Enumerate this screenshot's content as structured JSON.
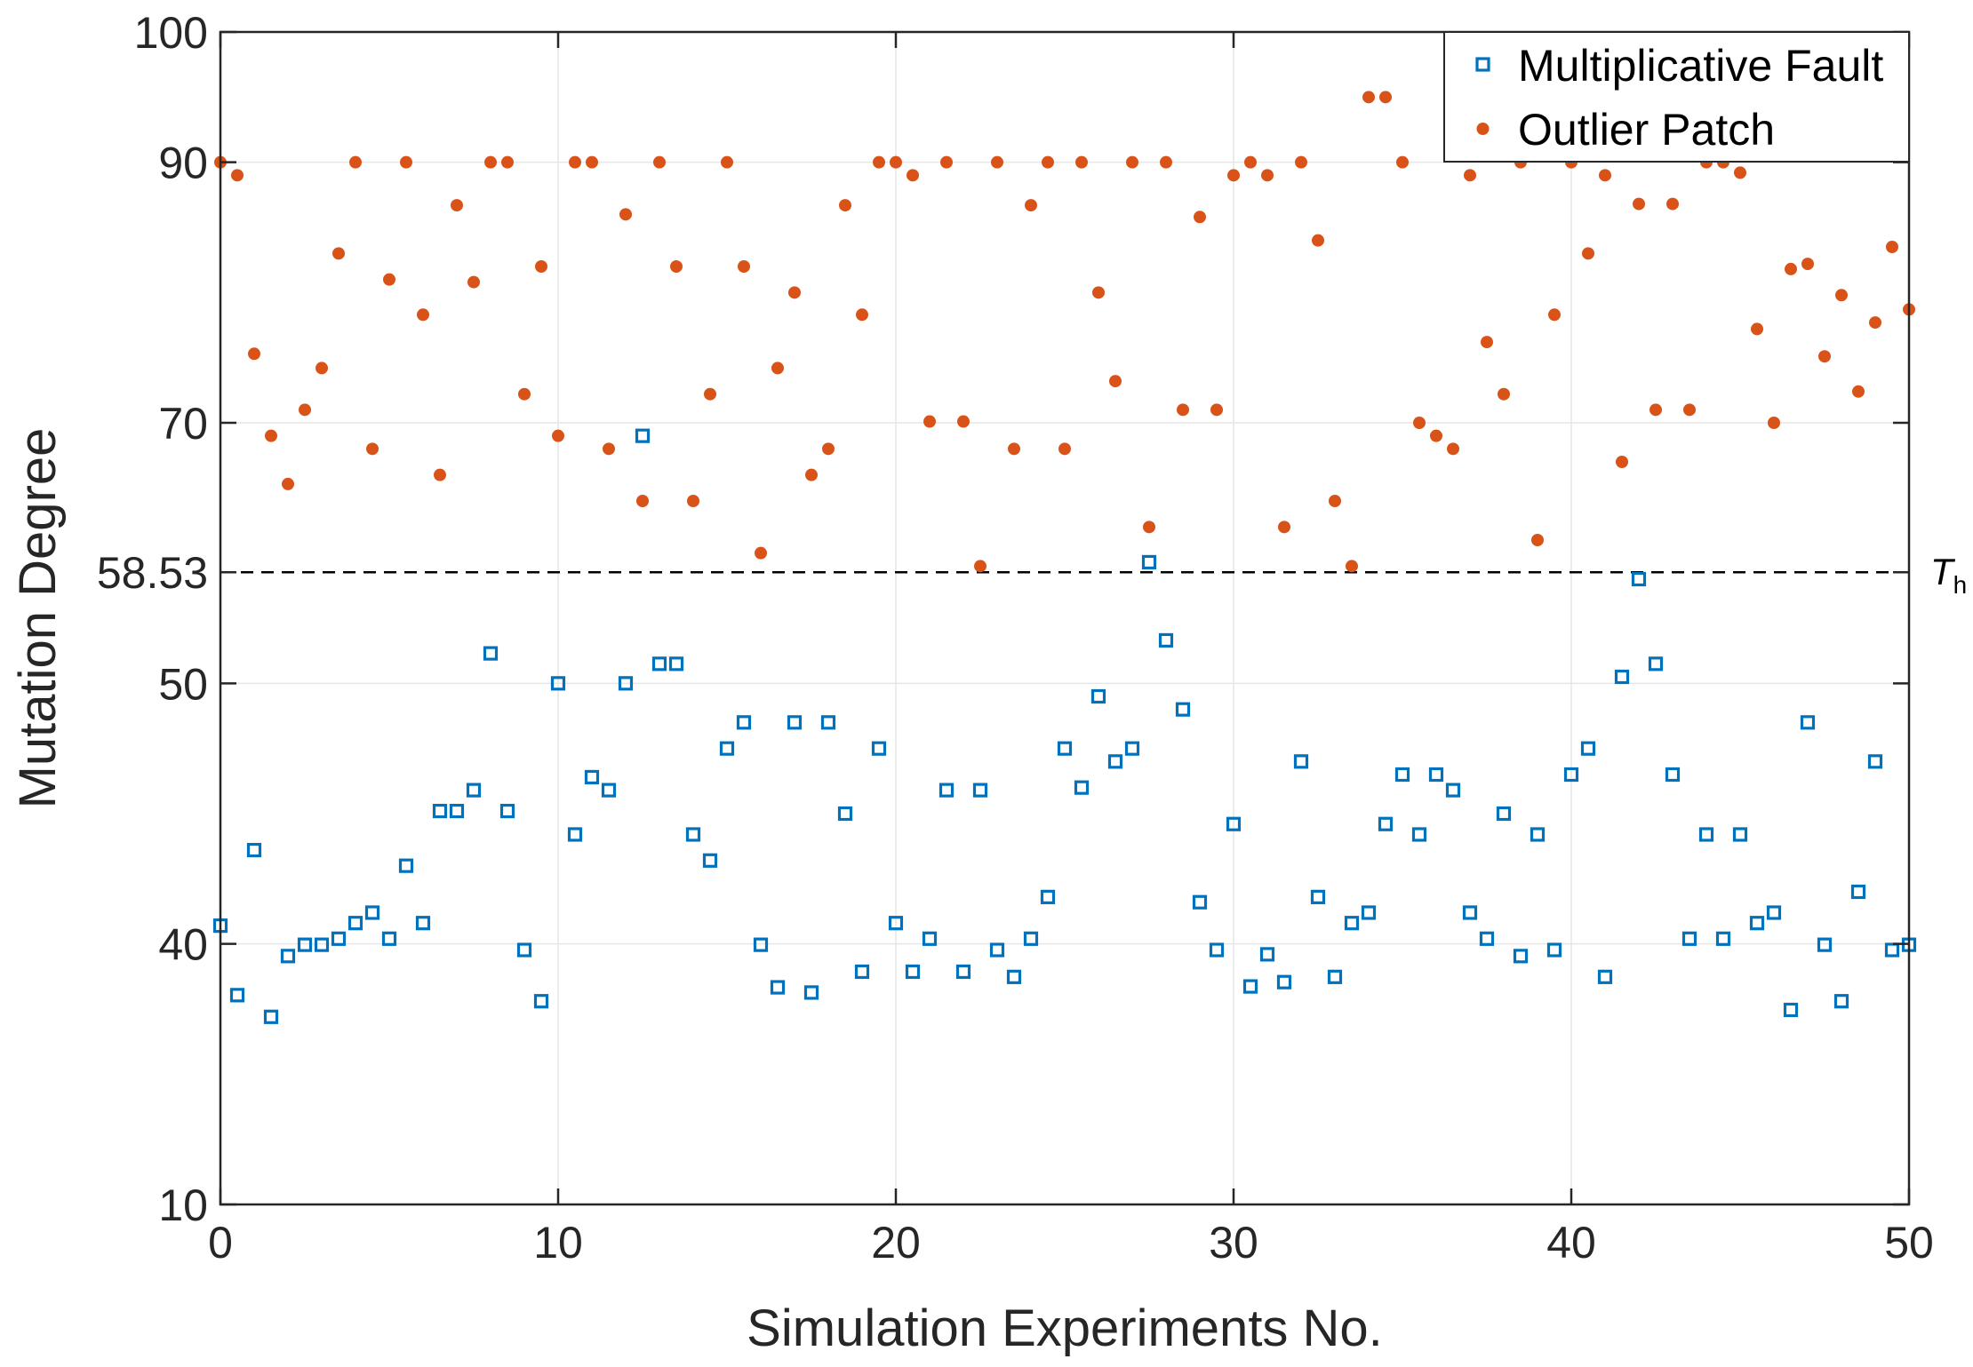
{
  "chart_data": {
    "type": "scatter",
    "title": "",
    "xlabel": "Simulation Experiments No.",
    "ylabel": "Mutation Degree",
    "xlim": [
      0,
      50
    ],
    "ylim": [
      10,
      100
    ],
    "x_ticks": [
      0,
      10,
      20,
      30,
      40,
      50
    ],
    "x_tick_labels": [
      "0",
      "10",
      "20",
      "30",
      "40",
      "50"
    ],
    "y_ticks": [
      10,
      40,
      50,
      58.53,
      70,
      90,
      100
    ],
    "y_tick_labels": [
      "10",
      "40",
      "50",
      "58.53",
      "70",
      "90",
      "100"
    ],
    "y_axis_scale": {
      "comment": "piecewise-linear axis; equal screen spacing per segment",
      "breaks": [
        10,
        40,
        50,
        70,
        90,
        100
      ],
      "relative_spans": [
        1,
        1,
        1,
        1,
        0.5
      ]
    },
    "threshold": {
      "value": 58.53,
      "label": "T",
      "label_sub": "h",
      "style": "dashed"
    },
    "grid": true,
    "legend_position": "top-right",
    "series": [
      {
        "name": "Multiplicative Fault",
        "marker": "square-open",
        "color": "#0072BD",
        "points": [
          [
            0,
            40.7
          ],
          [
            0.5,
            34.1
          ],
          [
            1,
            43.6
          ],
          [
            1.5,
            31.6
          ],
          [
            2,
            38.6
          ],
          [
            2.5,
            39.9
          ],
          [
            3,
            39.9
          ],
          [
            3.5,
            40.2
          ],
          [
            4,
            40.8
          ],
          [
            4.5,
            41.2
          ],
          [
            5,
            40.2
          ],
          [
            5.5,
            43.0
          ],
          [
            6,
            40.8
          ],
          [
            6.5,
            45.1
          ],
          [
            7,
            45.1
          ],
          [
            7.5,
            45.9
          ],
          [
            8,
            52.3
          ],
          [
            8.5,
            45.1
          ],
          [
            9,
            39.3
          ],
          [
            9.5,
            33.4
          ],
          [
            10,
            50
          ],
          [
            10.5,
            44.2
          ],
          [
            11,
            46.4
          ],
          [
            11.5,
            45.9
          ],
          [
            12,
            50
          ],
          [
            12.5,
            69
          ],
          [
            13,
            51.5
          ],
          [
            13.5,
            51.5
          ],
          [
            14,
            44.2
          ],
          [
            14.5,
            43.2
          ],
          [
            15,
            47.5
          ],
          [
            15.5,
            48.5
          ],
          [
            16,
            39.9
          ],
          [
            16.5,
            35.0
          ],
          [
            17,
            48.5
          ],
          [
            17.5,
            34.4
          ],
          [
            18,
            48.5
          ],
          [
            18.5,
            45.0
          ],
          [
            19,
            36.8
          ],
          [
            19.5,
            47.5
          ],
          [
            20,
            40.8
          ],
          [
            20.5,
            36.8
          ],
          [
            21,
            40.2
          ],
          [
            21.5,
            45.9
          ],
          [
            22,
            36.8
          ],
          [
            22.5,
            45.9
          ],
          [
            23,
            39.3
          ],
          [
            23.5,
            36.2
          ],
          [
            24,
            40.2
          ],
          [
            24.5,
            41.8
          ],
          [
            25,
            47.5
          ],
          [
            25.5,
            46.0
          ],
          [
            26,
            49.5
          ],
          [
            26.5,
            47.0
          ],
          [
            27,
            47.5
          ],
          [
            27.5,
            59.3
          ],
          [
            28,
            53.3
          ],
          [
            28.5,
            49.0
          ],
          [
            29,
            41.6
          ],
          [
            29.5,
            39.3
          ],
          [
            30,
            44.6
          ],
          [
            30.5,
            35.1
          ],
          [
            31,
            38.8
          ],
          [
            31.5,
            35.6
          ],
          [
            32,
            47.0
          ],
          [
            32.5,
            41.8
          ],
          [
            33,
            36.2
          ],
          [
            33.5,
            40.8
          ],
          [
            34,
            41.2
          ],
          [
            34.5,
            44.6
          ],
          [
            35,
            46.5
          ],
          [
            35.5,
            44.2
          ],
          [
            36,
            46.5
          ],
          [
            36.5,
            45.9
          ],
          [
            37,
            41.2
          ],
          [
            37.5,
            40.2
          ],
          [
            38,
            45.0
          ],
          [
            38.5,
            38.6
          ],
          [
            39,
            44.2
          ],
          [
            39.5,
            39.3
          ],
          [
            40,
            46.5
          ],
          [
            40.5,
            47.5
          ],
          [
            41,
            36.2
          ],
          [
            41.5,
            50.5
          ],
          [
            42,
            58.0
          ],
          [
            42.5,
            51.5
          ],
          [
            43,
            46.5
          ],
          [
            43.5,
            40.2
          ],
          [
            44,
            44.2
          ],
          [
            44.5,
            40.2
          ],
          [
            45,
            44.2
          ],
          [
            45.5,
            40.8
          ],
          [
            46,
            41.2
          ],
          [
            46.5,
            32.4
          ],
          [
            47,
            48.5
          ],
          [
            47.5,
            39.9
          ],
          [
            48,
            33.4
          ],
          [
            48.5,
            42.0
          ],
          [
            49,
            47.0
          ],
          [
            49.5,
            39.3
          ],
          [
            50,
            39.9
          ]
        ]
      },
      {
        "name": "Outlier Patch",
        "marker": "circle-filled",
        "color": "#D95319",
        "points": [
          [
            0,
            90
          ],
          [
            0.5,
            89
          ],
          [
            1,
            75.3
          ],
          [
            1.5,
            69
          ],
          [
            2,
            65.3
          ],
          [
            2.5,
            71
          ],
          [
            3,
            74.2
          ],
          [
            3.5,
            83
          ],
          [
            4,
            90
          ],
          [
            4.5,
            68
          ],
          [
            5,
            81
          ],
          [
            5.5,
            90
          ],
          [
            6,
            78.3
          ],
          [
            6.5,
            66
          ],
          [
            7,
            86.7
          ],
          [
            7.5,
            80.8
          ],
          [
            8,
            90
          ],
          [
            8.5,
            90
          ],
          [
            9,
            72.2
          ],
          [
            9.5,
            82
          ],
          [
            10,
            69
          ],
          [
            10.5,
            90
          ],
          [
            11,
            90
          ],
          [
            11.5,
            68
          ],
          [
            12,
            86
          ],
          [
            12.5,
            64
          ],
          [
            13,
            90
          ],
          [
            13.5,
            82
          ],
          [
            14,
            64
          ],
          [
            14.5,
            72.2
          ],
          [
            15,
            90
          ],
          [
            15.5,
            82
          ],
          [
            16,
            60
          ],
          [
            16.5,
            74.2
          ],
          [
            17,
            80
          ],
          [
            17.5,
            66
          ],
          [
            18,
            68
          ],
          [
            18.5,
            86.7
          ],
          [
            19,
            78.3
          ],
          [
            19.5,
            90
          ],
          [
            20,
            90
          ],
          [
            20.5,
            89
          ],
          [
            21,
            70.1
          ],
          [
            21.5,
            90
          ],
          [
            22,
            70.1
          ],
          [
            22.5,
            59
          ],
          [
            23,
            90
          ],
          [
            23.5,
            68
          ],
          [
            24,
            86.7
          ],
          [
            24.5,
            90
          ],
          [
            25,
            68
          ],
          [
            25.5,
            90
          ],
          [
            26,
            80
          ],
          [
            26.5,
            73.2
          ],
          [
            27,
            90
          ],
          [
            27.5,
            62
          ],
          [
            28,
            90
          ],
          [
            28.5,
            71
          ],
          [
            29,
            85.8
          ],
          [
            29.5,
            71
          ],
          [
            30,
            89
          ],
          [
            30.5,
            90
          ],
          [
            31,
            89
          ],
          [
            31.5,
            62
          ],
          [
            32,
            90
          ],
          [
            32.5,
            84
          ],
          [
            33,
            64
          ],
          [
            33.5,
            59
          ],
          [
            34,
            95
          ],
          [
            34.5,
            95
          ],
          [
            35,
            90
          ],
          [
            35.5,
            70
          ],
          [
            36,
            69
          ],
          [
            36.5,
            68
          ],
          [
            37,
            89
          ],
          [
            37.5,
            76.2
          ],
          [
            38,
            72.2
          ],
          [
            38.5,
            90
          ],
          [
            39,
            61
          ],
          [
            39.5,
            78.3
          ],
          [
            40,
            90
          ],
          [
            40.5,
            83
          ],
          [
            41,
            89
          ],
          [
            41.5,
            67
          ],
          [
            42,
            86.8
          ],
          [
            42.5,
            71
          ],
          [
            43,
            86.8
          ],
          [
            43.5,
            71
          ],
          [
            44,
            90
          ],
          [
            44.5,
            90
          ],
          [
            45,
            89.2
          ],
          [
            45.5,
            77.2
          ],
          [
            46,
            70
          ],
          [
            46.5,
            81.8
          ],
          [
            47,
            82.2
          ],
          [
            47.5,
            75.1
          ],
          [
            48,
            79.8
          ],
          [
            48.5,
            72.4
          ],
          [
            49,
            77.7
          ],
          [
            49.5,
            83.5
          ],
          [
            50,
            78.7
          ]
        ]
      }
    ]
  }
}
